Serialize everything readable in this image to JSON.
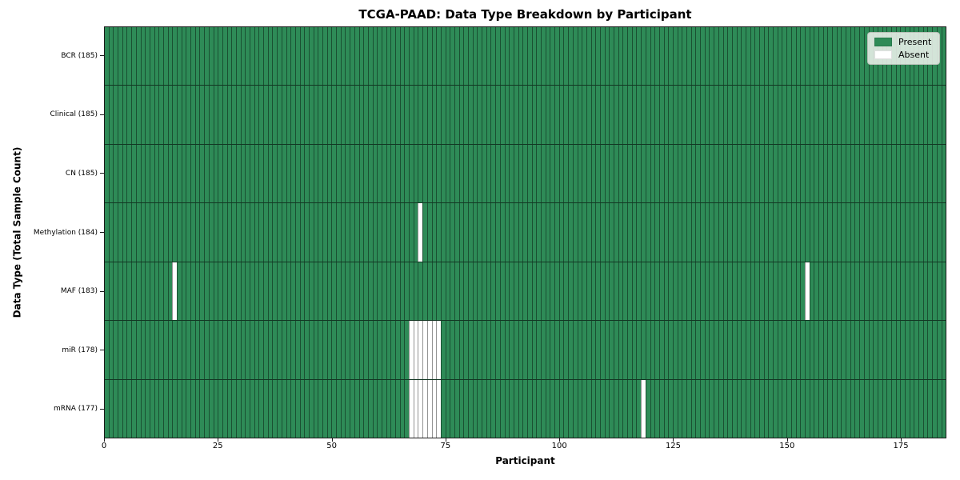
{
  "chart_data": {
    "type": "heatmap",
    "title": "TCGA-PAAD: Data Type Breakdown by Participant",
    "xlabel": "Participant",
    "ylabel": "Data Type (Total Sample Count)",
    "x_ticks": [
      0,
      25,
      50,
      75,
      100,
      125,
      150,
      175
    ],
    "x_range": [
      0,
      185
    ],
    "n_participants": 185,
    "rows": [
      {
        "label": "BCR (185)",
        "data_type": "BCR",
        "total_samples": 185,
        "absent_participants": []
      },
      {
        "label": "Clinical (185)",
        "data_type": "Clinical",
        "total_samples": 185,
        "absent_participants": []
      },
      {
        "label": "CN (185)",
        "data_type": "CN",
        "total_samples": 185,
        "absent_participants": []
      },
      {
        "label": "Methylation (184)",
        "data_type": "Methylation",
        "total_samples": 184,
        "absent_participants": [
          69
        ]
      },
      {
        "label": "MAF (183)",
        "data_type": "MAF",
        "total_samples": 183,
        "absent_participants": [
          15,
          154
        ]
      },
      {
        "label": "miR (178)",
        "data_type": "miR",
        "total_samples": 178,
        "absent_participants": [
          67,
          68,
          69,
          70,
          71,
          72,
          73
        ]
      },
      {
        "label": "mRNA (177)",
        "data_type": "mRNA",
        "total_samples": 177,
        "absent_participants": [
          67,
          68,
          69,
          70,
          71,
          72,
          73,
          118
        ]
      }
    ],
    "legend": [
      {
        "label": "Present",
        "color": "#2e8b57"
      },
      {
        "label": "Absent",
        "color": "#ffffff"
      }
    ],
    "legend_position": "upper right",
    "grid": false,
    "colors": {
      "present": "#2e8b57",
      "absent": "#ffffff",
      "cell_edge": "rgba(0,0,0,0.42)",
      "row_divider": "rgba(0,0,0,0.6)",
      "frame": "#1a1a1a",
      "legend_bg": "rgba(235,240,235,0.88)"
    }
  }
}
